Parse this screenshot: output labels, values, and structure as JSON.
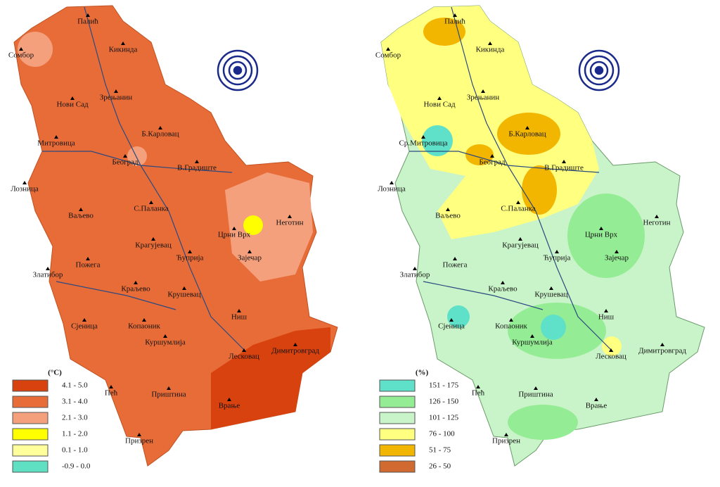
{
  "maps": [
    {
      "legend_title": "(°C)",
      "legend": [
        {
          "label": "4.1 - 5.0",
          "color": "#d8420f"
        },
        {
          "label": "3.1 - 4.0",
          "color": "#e86c38"
        },
        {
          "label": "2.1 - 3.0",
          "color": "#f4a07c"
        },
        {
          "label": "1.1 - 2.0",
          "color": "#ffff00"
        },
        {
          "label": "0.1 - 1.0",
          "color": "#ffff9c"
        },
        {
          "label": "-0.9 - 0.0",
          "color": "#5fe0c2"
        }
      ],
      "cities": [
        "Палић",
        "Сомбор",
        "Кикинда",
        "Нови Сад",
        "Зрењанин",
        "Б.Карловац",
        "Митровица",
        "Београд",
        "В.Градиште",
        "Лозница",
        "Ваљево",
        "С.Паланка",
        "Црни Врх",
        "Неготин",
        "Крагујевац",
        "Пожега",
        "Ћуприја",
        "Зајечар",
        "Златибор",
        "Краљево",
        "Крушевац",
        "Ниш",
        "Сјеница",
        "Копаоник",
        "Куршумлија",
        "Лесковац",
        "Димитровград",
        "Пећ",
        "Приштина",
        "Врање",
        "Призрен"
      ]
    },
    {
      "legend_title": "(%)",
      "legend": [
        {
          "label": "151 - 175",
          "color": "#5fe0c8"
        },
        {
          "label": "126 - 150",
          "color": "#94ec94"
        },
        {
          "label": "101 - 125",
          "color": "#c9f4c9"
        },
        {
          "label": "76 - 100",
          "color": "#ffff80"
        },
        {
          "label": "51 - 75",
          "color": "#f2b600"
        },
        {
          "label": "26 - 50",
          "color": "#d06a30"
        }
      ],
      "cities": [
        "Палић",
        "Сомбор",
        "Кикинда",
        "Нови Сад",
        "Зрењанин",
        "Б.Карловац",
        "Ср.Митровица",
        "Београд",
        "В.Градиште",
        "Лозница",
        "Ваљево",
        "С.Паланка",
        "Црни Врх",
        "Неготин",
        "Крагујевац",
        "Пожега",
        "Ћуприја",
        "Зајечар",
        "Златибор",
        "Краљево",
        "Крушевац",
        "Ниш",
        "Сјеница",
        "Копаоник",
        "Куршумлија",
        "Лесковац",
        "Димитровград",
        "Пећ",
        "Приштина",
        "Врање",
        "Призрен"
      ]
    }
  ]
}
